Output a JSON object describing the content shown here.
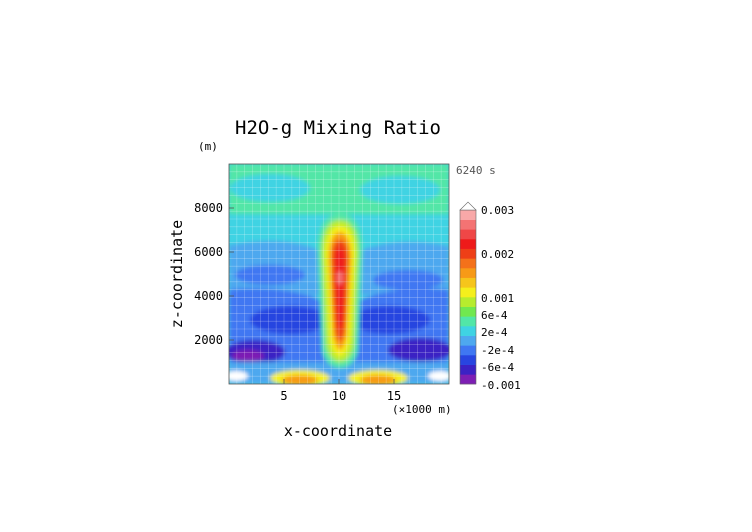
{
  "chart_data": {
    "type": "heatmap",
    "title": "H2O-g Mixing Ratio",
    "xlabel": "x-coordinate",
    "ylabel": "z-coordinate",
    "x_unit": "(×1000 m)",
    "y_unit": "(m)",
    "time_label": "6240 s",
    "xlim": [
      0,
      20
    ],
    "ylim": [
      0,
      10000
    ],
    "x_ticks": [
      5,
      10,
      15
    ],
    "x_tick_labels": [
      "5",
      "10",
      "15"
    ],
    "y_ticks": [
      2000,
      4000,
      6000,
      8000
    ],
    "y_tick_labels": [
      "2000",
      "4000",
      "6000",
      "8000"
    ],
    "grid": true,
    "colorbar": {
      "placement": "right",
      "labels": [
        "0.003",
        "0.002",
        "0.001",
        "6e-4",
        "2e-4",
        "-2e-4",
        "-6e-4",
        "-0.001"
      ],
      "colors": [
        "#7d1fb4",
        "#3b22c4",
        "#2845e0",
        "#3f77f2",
        "#4ea8ef",
        "#3fd3e3",
        "#52e6a7",
        "#71e84f",
        "#b7ec2e",
        "#f5ef1c",
        "#f6c51b",
        "#f79a17",
        "#f4711a",
        "#ee3f17",
        "#ee1a1a",
        "#ef4747",
        "#f47373",
        "#f8a8a8"
      ]
    },
    "notes": "Field approximated: background anomaly ~0; tall positive plume centred at x≈10 (×1000 m) reaching ~7500 m with core ≈0.002–0.003; negative bands near 2000–4000 m and 5000–6000 m; strong negative/positive patches near surface."
  }
}
